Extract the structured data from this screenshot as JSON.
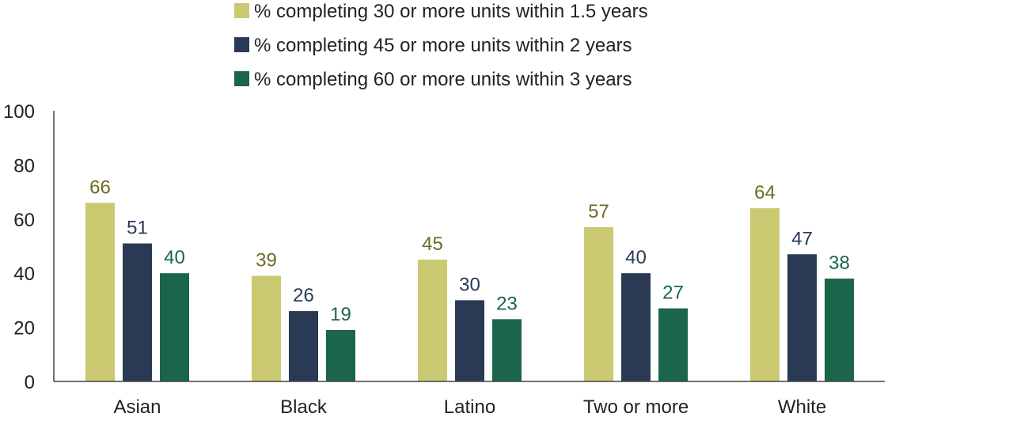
{
  "chart_data": {
    "type": "bar",
    "title": "",
    "xlabel": "",
    "ylabel": "",
    "ylim": [
      0,
      100
    ],
    "yticks": [
      0,
      20,
      40,
      60,
      80,
      100
    ],
    "grid": false,
    "legend_position": "top",
    "categories": [
      "Asian",
      "Black",
      "Latino",
      "Two or more",
      "White"
    ],
    "series": [
      {
        "name": "% completing 30 or more units within 1.5 years",
        "color": "#cbc872",
        "label_color": "#6f6a24",
        "values": [
          66,
          39,
          45,
          57,
          64
        ]
      },
      {
        "name": "% completing 45 or more units within 2 years",
        "color": "#2a3a55",
        "label_color": "#2a3a55",
        "values": [
          51,
          26,
          30,
          40,
          47
        ]
      },
      {
        "name": "% completing 60 or more units within 3 years",
        "color": "#1b654a",
        "label_color": "#1b654a",
        "values": [
          40,
          19,
          23,
          27,
          38
        ]
      }
    ]
  }
}
